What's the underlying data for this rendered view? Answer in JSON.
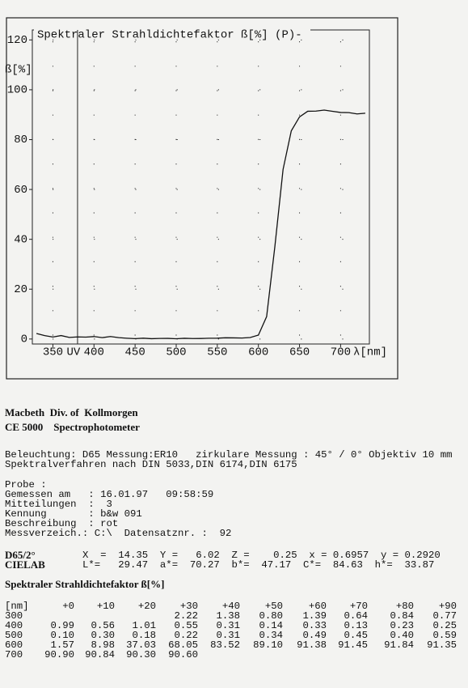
{
  "chart_data": {
    "type": "line",
    "title": "Spektraler Strahldichtefaktor ß[%]   (P)-",
    "ylabel": "ß[%]",
    "xlabel": "λ[nm]",
    "uv_marker": {
      "label": "UV",
      "x": 380
    },
    "x": [
      330,
      340,
      350,
      360,
      370,
      380,
      390,
      400,
      410,
      420,
      430,
      440,
      450,
      460,
      470,
      480,
      490,
      500,
      510,
      520,
      530,
      540,
      550,
      560,
      570,
      580,
      590,
      600,
      610,
      620,
      630,
      640,
      650,
      660,
      670,
      680,
      690,
      700,
      710,
      720,
      730
    ],
    "series": [
      {
        "name": "ß",
        "color": "#111111",
        "values": [
          2.22,
          1.38,
          0.8,
          1.39,
          0.64,
          0.84,
          0.77,
          0.99,
          0.56,
          1.01,
          0.55,
          0.31,
          0.14,
          0.33,
          0.13,
          0.23,
          0.25,
          0.1,
          0.3,
          0.18,
          0.22,
          0.31,
          0.34,
          0.49,
          0.45,
          0.4,
          0.59,
          1.57,
          8.98,
          37.03,
          68.05,
          83.52,
          89.1,
          91.38,
          91.45,
          91.84,
          91.35,
          90.9,
          90.84,
          90.3,
          90.6
        ]
      }
    ],
    "xlim": [
      325,
      735
    ],
    "ylim": [
      -2,
      124
    ],
    "xticks": [
      350,
      400,
      450,
      500,
      550,
      600,
      650,
      700
    ],
    "yticks": [
      0,
      20,
      40,
      60,
      80,
      100,
      120
    ],
    "grid": true
  },
  "header": {
    "company": "Macbeth  Div. of  Kollmorgen",
    "device": "CE 5000    Spectrophotometer"
  },
  "settings": [
    "Beleuchtung: D65 Messung:ER10   zirkulare Messung : 45° / 0° Objektiv 10 mm",
    "Spektralverfahren nach DIN 5033,DIN 6174,DIN 6175"
  ],
  "sample": {
    "label": "Probe :",
    "fields": [
      "Gemessen am   : 16.01.97   09:58:59",
      "Mitteilungen  :  3",
      "Kennung       : b&w 091",
      "Beschreibung  : rot",
      "Messverzeich.: C:\\  Datensatznr. :  92"
    ]
  },
  "colorimetry": [
    {
      "label": "D65/2°",
      "text": "X  =  14.35  Y =   6.02  Z =    0.25  x = 0.6957  y = 0.2920"
    },
    {
      "label": "CIELAB",
      "text": "L*=   29.47  a*=  70.27  b*=  47.17  C*=  84.63  h*=  33.87"
    }
  ],
  "table": {
    "title": "Spektraler Strahldichtefaktor ß[%]",
    "header": [
      "[nm]",
      "+0",
      "+10",
      "+20",
      "+30",
      "+40",
      "+50",
      "+60",
      "+70",
      "+80",
      "+90"
    ],
    "rows": [
      [
        "300",
        null,
        null,
        null,
        "2.22",
        "1.38",
        "0.80",
        "1.39",
        "0.64",
        "0.84",
        "0.77"
      ],
      [
        "400",
        "0.99",
        "0.56",
        "1.01",
        "0.55",
        "0.31",
        "0.14",
        "0.33",
        "0.13",
        "0.23",
        "0.25"
      ],
      [
        "500",
        "0.10",
        "0.30",
        "0.18",
        "0.22",
        "0.31",
        "0.34",
        "0.49",
        "0.45",
        "0.40",
        "0.59"
      ],
      [
        "600",
        "1.57",
        "8.98",
        "37.03",
        "68.05",
        "83.52",
        "89.10",
        "91.38",
        "91.45",
        "91.84",
        "91.35"
      ],
      [
        "700",
        "90.90",
        "90.84",
        "90.30",
        "90.60"
      ]
    ]
  }
}
